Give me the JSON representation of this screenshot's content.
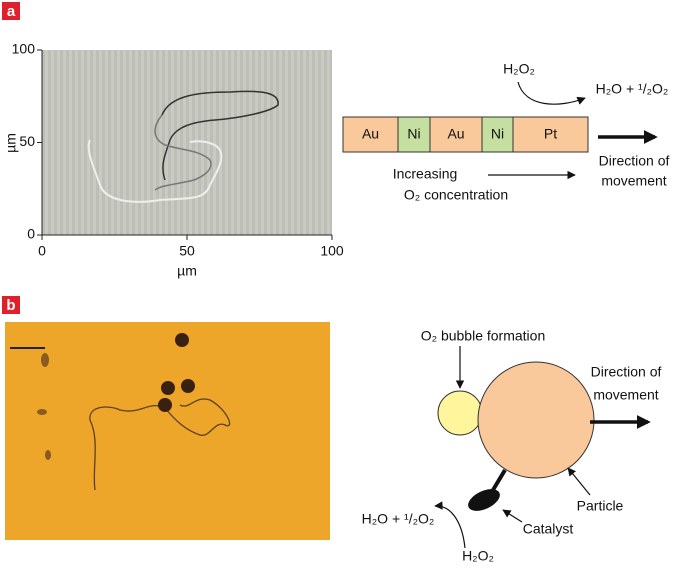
{
  "panel_a": {
    "label": "a",
    "plot": {
      "x_label": "µm",
      "y_label": "µm",
      "xlim": [
        0,
        100
      ],
      "ylim": [
        0,
        100
      ],
      "xticks": [
        0,
        50,
        100
      ],
      "yticks": [
        0,
        50,
        100
      ]
    },
    "diagram": {
      "segments": [
        "Au",
        "Ni",
        "Au",
        "Ni",
        "Pt"
      ],
      "reactant": "H₂O₂",
      "products": "H₂O + ¹/₂O₂",
      "direction": [
        "Direction of",
        "movement"
      ],
      "gradient": [
        "Increasing",
        "O₂ concentration"
      ]
    }
  },
  "panel_b": {
    "label": "b",
    "diagram": {
      "bubble": "O₂ bubble formation",
      "direction": [
        "Direction of",
        "movement"
      ],
      "particle": "Particle",
      "catalyst": "Catalyst",
      "products": "H₂O + ¹/₂O₂",
      "reactant": "H₂O₂"
    }
  }
}
